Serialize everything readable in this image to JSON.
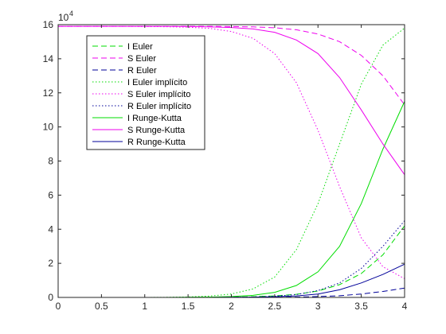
{
  "chart_data": {
    "type": "line",
    "title": "",
    "xlabel": "",
    "ylabel": "",
    "exponent_label": "10^4",
    "exponent_base": "10",
    "exponent_power": "4",
    "xlim": [
      0,
      4
    ],
    "ylim": [
      0,
      16
    ],
    "x_ticks": [
      0,
      0.5,
      1,
      1.5,
      2,
      2.5,
      3,
      3.5,
      4
    ],
    "x_tick_labels": [
      "0",
      "0.5",
      "1",
      "1.5",
      "2",
      "2.5",
      "3",
      "3.5",
      "4"
    ],
    "y_ticks": [
      0,
      2,
      4,
      6,
      8,
      10,
      12,
      14,
      16
    ],
    "y_tick_labels": [
      "0",
      "2",
      "4",
      "6",
      "8",
      "10",
      "12",
      "14",
      "16"
    ],
    "y_units_note": "values in units of 10^4",
    "grid": false,
    "legend_position": "top-left",
    "x": [
      0,
      0.25,
      0.5,
      0.75,
      1,
      1.25,
      1.5,
      1.75,
      2,
      2.25,
      2.5,
      2.75,
      3,
      3.25,
      3.5,
      3.75,
      4
    ],
    "series": [
      {
        "name": "I Euler",
        "color": "#00dd00",
        "dash": "dashed",
        "values": [
          0,
          0,
          0,
          0,
          0,
          0,
          0,
          0.01,
          0.02,
          0.04,
          0.09,
          0.18,
          0.38,
          0.75,
          1.4,
          2.5,
          4.2
        ]
      },
      {
        "name": "S Euler",
        "color": "#ee00ee",
        "dash": "dashed",
        "values": [
          15.9,
          15.9,
          15.9,
          15.9,
          15.9,
          15.9,
          15.9,
          15.9,
          15.89,
          15.87,
          15.82,
          15.7,
          15.45,
          15.0,
          14.2,
          13.0,
          11.3
        ]
      },
      {
        "name": "R Euler",
        "color": "#000099",
        "dash": "dashed",
        "values": [
          0,
          0,
          0,
          0,
          0,
          0,
          0,
          0,
          0,
          0.01,
          0.01,
          0.02,
          0.05,
          0.1,
          0.2,
          0.35,
          0.55
        ]
      },
      {
        "name": "I Euler implícito",
        "color": "#00dd00",
        "dash": "dotted",
        "values": [
          0,
          0,
          0,
          0,
          0,
          0.01,
          0.03,
          0.08,
          0.2,
          0.5,
          1.2,
          2.8,
          5.5,
          9.0,
          12.5,
          14.8,
          15.8
        ]
      },
      {
        "name": "S Euler implícito",
        "color": "#ee00ee",
        "dash": "dotted",
        "values": [
          15.9,
          15.9,
          15.9,
          15.9,
          15.89,
          15.88,
          15.85,
          15.78,
          15.6,
          15.2,
          14.3,
          12.6,
          9.8,
          6.5,
          3.5,
          1.8,
          1.1
        ]
      },
      {
        "name": "R Euler implícito",
        "color": "#000099",
        "dash": "dotted",
        "values": [
          0,
          0,
          0,
          0,
          0,
          0,
          0,
          0,
          0.01,
          0.03,
          0.07,
          0.17,
          0.4,
          0.85,
          1.7,
          3.0,
          4.5
        ]
      },
      {
        "name": "I Runge-Kutta",
        "color": "#00dd00",
        "dash": "solid",
        "values": [
          0,
          0,
          0,
          0,
          0,
          0,
          0.01,
          0.02,
          0.05,
          0.12,
          0.3,
          0.7,
          1.5,
          3.0,
          5.5,
          8.7,
          11.5
        ]
      },
      {
        "name": "S Runge-Kutta",
        "color": "#ee00ee",
        "dash": "solid",
        "values": [
          15.9,
          15.9,
          15.9,
          15.9,
          15.9,
          15.9,
          15.89,
          15.87,
          15.83,
          15.75,
          15.55,
          15.1,
          14.3,
          12.9,
          11.0,
          9.0,
          7.2
        ]
      },
      {
        "name": "R Runge-Kutta",
        "color": "#000099",
        "dash": "solid",
        "values": [
          0,
          0,
          0,
          0,
          0,
          0,
          0,
          0,
          0.01,
          0.02,
          0.04,
          0.09,
          0.2,
          0.45,
          0.85,
          1.35,
          1.95
        ]
      }
    ]
  }
}
